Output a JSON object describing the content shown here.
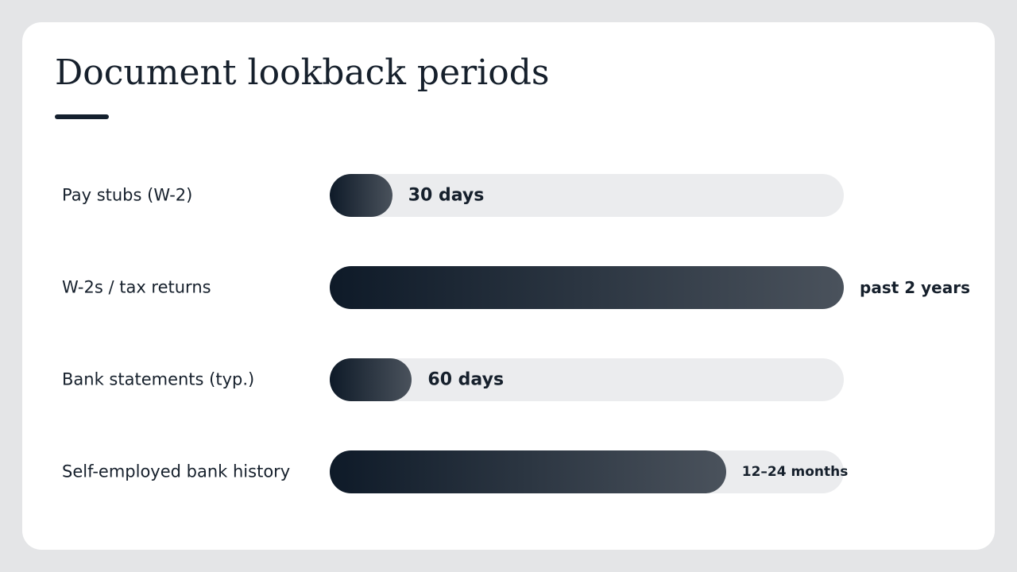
{
  "chart_data": {
    "type": "bar",
    "title": "Document lookback periods",
    "categories": [
      "Pay stubs (W-2)",
      "W-2s / tax returns",
      "Bank statements (typ.)",
      "Self-employed bank history"
    ],
    "values": [
      1,
      24,
      2,
      18
    ],
    "value_labels": [
      "30 days",
      "past 2 years",
      "60 days",
      "12–24 months"
    ],
    "xlim": [
      0,
      24
    ]
  }
}
